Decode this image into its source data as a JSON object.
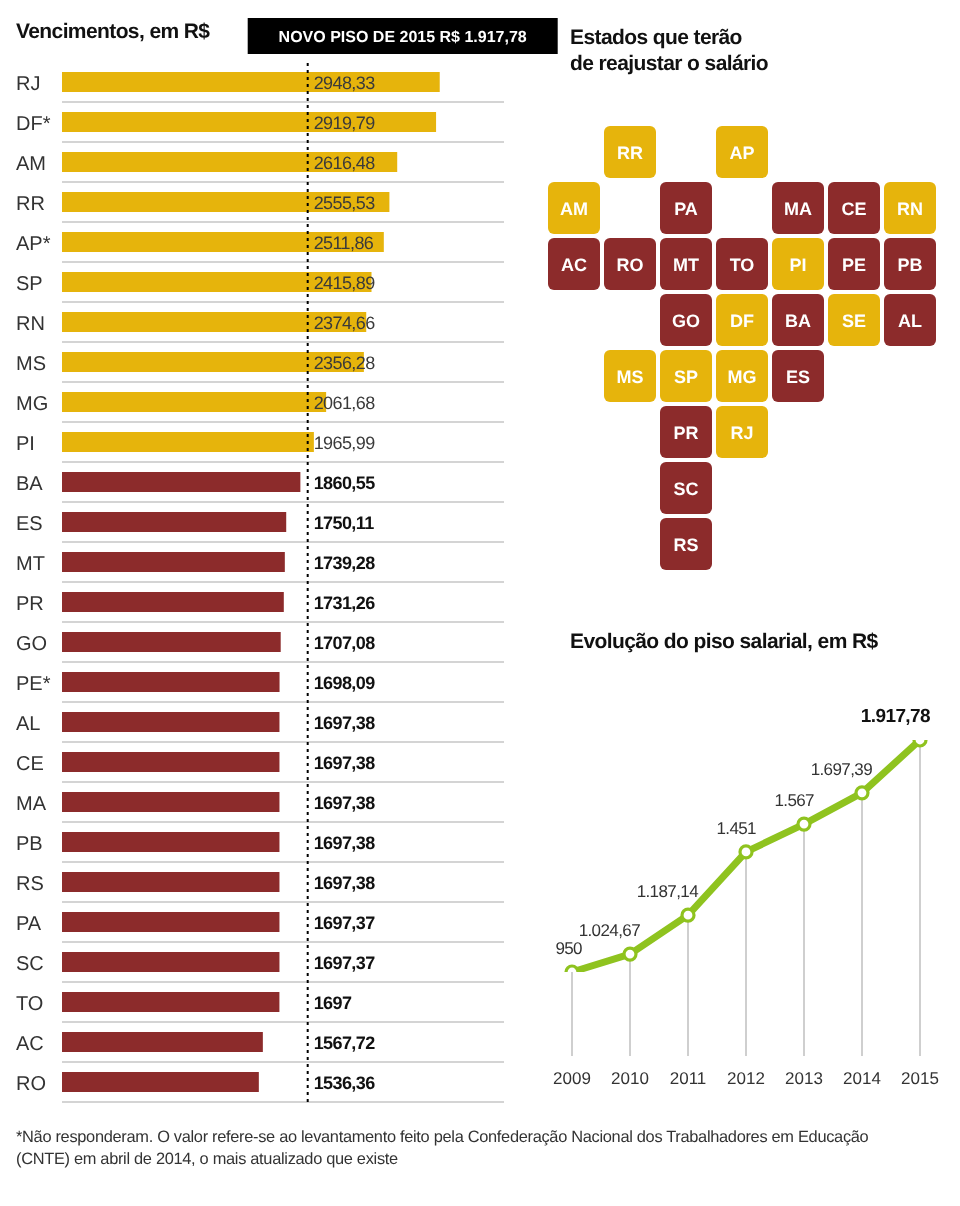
{
  "chart_data": [
    {
      "type": "bar",
      "orientation": "horizontal",
      "title": "Vencimentos, em R$",
      "categories": [
        "RJ",
        "DF*",
        "AM",
        "RR",
        "AP*",
        "SP",
        "RN",
        "MS",
        "MG",
        "PI",
        "BA",
        "ES",
        "MT",
        "PR",
        "GO",
        "PE*",
        "AL",
        "CE",
        "MA",
        "PB",
        "RS",
        "PA",
        "SC",
        "TO",
        "AC",
        "RO"
      ],
      "values": [
        2948.33,
        2919.79,
        2616.48,
        2555.53,
        2511.86,
        2415.89,
        2374.66,
        2356.28,
        2061.68,
        1965.99,
        1860.55,
        1750.11,
        1739.28,
        1731.26,
        1707.08,
        1698.09,
        1697.38,
        1697.38,
        1697.38,
        1697.38,
        1697.38,
        1697.37,
        1697.37,
        1697,
        1567.72,
        1536.36
      ],
      "value_labels": [
        "2948,33",
        "2919,79",
        "2616,48",
        "2555,53",
        "2511,86",
        "2415,89",
        "2374,66",
        "2356,28",
        "2061,68",
        "1965,99",
        "1860,55",
        "1750,11",
        "1739,28",
        "1731,26",
        "1707,08",
        "1698,09",
        "1697,38",
        "1697,38",
        "1697,38",
        "1697,38",
        "1697,38",
        "1697,37",
        "1697,37",
        "1697",
        "1567,72",
        "1536,36"
      ],
      "colors": [
        "#e6b40c",
        "#e6b40c",
        "#e6b40c",
        "#e6b40c",
        "#e6b40c",
        "#e6b40c",
        "#e6b40c",
        "#e6b40c",
        "#e6b40c",
        "#e6b40c",
        "#8c2b2b",
        "#8c2b2b",
        "#8c2b2b",
        "#8c2b2b",
        "#8c2b2b",
        "#8c2b2b",
        "#8c2b2b",
        "#8c2b2b",
        "#8c2b2b",
        "#8c2b2b",
        "#8c2b2b",
        "#8c2b2b",
        "#8c2b2b",
        "#8c2b2b",
        "#8c2b2b",
        "#8c2b2b"
      ],
      "xlim": [
        0,
        3450
      ],
      "grid": "y",
      "tick_labels": "y",
      "ref_lines": [
        {
          "axis": "x",
          "value": 1917.78,
          "label": "NOVO PISO DE 2015 R$ 1.917,78",
          "color": "#000000",
          "line_style": "dotted"
        }
      ],
      "annotations": [
        "*Não responderam. O valor refere-se ao levantamento feito pela Confederação Nacional dos Trabalhadores em Educação (CNTE) em abril de 2014, o mais atualizado que existe"
      ]
    },
    {
      "type": "other",
      "title": "Estados que terão de reajustar o salário",
      "categories": [
        "RR",
        "AP",
        "AM",
        "PA",
        "MA",
        "CE",
        "RN",
        "AC",
        "RO",
        "MT",
        "TO",
        "PI",
        "PE",
        "PB",
        "GO",
        "DF",
        "BA",
        "SE",
        "AL",
        "MS",
        "SP",
        "MG",
        "ES",
        "PR",
        "RJ",
        "SC",
        "RS"
      ],
      "colors": [
        "#e6b40c",
        "#e6b40c",
        "#e6b40c",
        "#8c2b2b",
        "#8c2b2b",
        "#8c2b2b",
        "#e6b40c",
        "#8c2b2b",
        "#8c2b2b",
        "#8c2b2b",
        "#8c2b2b",
        "#e6b40c",
        "#8c2b2b",
        "#8c2b2b",
        "#8c2b2b",
        "#e6b40c",
        "#8c2b2b",
        "#e6b40c",
        "#8c2b2b",
        "#e6b40c",
        "#e6b40c",
        "#e6b40c",
        "#8c2b2b",
        "#8c2b2b",
        "#e6b40c",
        "#8c2b2b",
        "#8c2b2b"
      ]
    },
    {
      "type": "line",
      "title": "Evolução do piso salarial, em R$",
      "categories": [
        "2009",
        "2010",
        "2011",
        "2012",
        "2013",
        "2014",
        "2015"
      ],
      "values": [
        950,
        1024.67,
        1187.14,
        1451,
        1567,
        1697.39,
        1917.78
      ],
      "value_labels": [
        "950",
        "1.024,67",
        "1.187,14",
        "1.451",
        "1.567",
        "1.697,39",
        "1.917,78"
      ],
      "color": "#8fc31f",
      "tick_labels": "x",
      "marker": "circle",
      "grid": "x"
    }
  ]
}
